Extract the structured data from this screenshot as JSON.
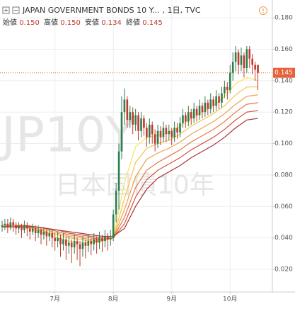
{
  "chart_data": {
    "type": "candlestick",
    "header": {
      "title": "JAPAN GOVERNMENT BONDS 10 Y...",
      "interval": ", 1日, TVC",
      "open_label": "始値",
      "open": "0.150",
      "high_label": "高値",
      "high": "0.150",
      "low_label": "安値",
      "low": "0.134",
      "close_label": "終値",
      "close": "0.145"
    },
    "watermark": [
      "JP10Y",
      "日本国債10年"
    ],
    "up_color": "#2e7d4f",
    "down_color": "#c0392b",
    "ohlc": [
      [
        0.047,
        0.051,
        0.044,
        0.048
      ],
      [
        0.048,
        0.052,
        0.045,
        0.049
      ],
      [
        0.049,
        0.052,
        0.043,
        0.047
      ],
      [
        0.047,
        0.053,
        0.045,
        0.05
      ],
      [
        0.05,
        0.052,
        0.044,
        0.048
      ],
      [
        0.048,
        0.05,
        0.042,
        0.046
      ],
      [
        0.046,
        0.05,
        0.043,
        0.047
      ],
      [
        0.047,
        0.049,
        0.04,
        0.045
      ],
      [
        0.045,
        0.051,
        0.043,
        0.048
      ],
      [
        0.048,
        0.05,
        0.041,
        0.046
      ],
      [
        0.046,
        0.048,
        0.039,
        0.044
      ],
      [
        0.044,
        0.049,
        0.042,
        0.046
      ],
      [
        0.046,
        0.048,
        0.038,
        0.043
      ],
      [
        0.043,
        0.048,
        0.04,
        0.045
      ],
      [
        0.045,
        0.047,
        0.036,
        0.042
      ],
      [
        0.042,
        0.047,
        0.039,
        0.044
      ],
      [
        0.044,
        0.046,
        0.035,
        0.041
      ],
      [
        0.041,
        0.046,
        0.038,
        0.043
      ],
      [
        0.043,
        0.045,
        0.034,
        0.04
      ],
      [
        0.04,
        0.043,
        0.032,
        0.038
      ],
      [
        0.038,
        0.044,
        0.034,
        0.04
      ],
      [
        0.04,
        0.042,
        0.028,
        0.036
      ],
      [
        0.036,
        0.043,
        0.032,
        0.039
      ],
      [
        0.039,
        0.041,
        0.026,
        0.035
      ],
      [
        0.035,
        0.041,
        0.03,
        0.037
      ],
      [
        0.037,
        0.039,
        0.024,
        0.034
      ],
      [
        0.034,
        0.042,
        0.03,
        0.038
      ],
      [
        0.038,
        0.04,
        0.026,
        0.036
      ],
      [
        0.036,
        0.038,
        0.022,
        0.033
      ],
      [
        0.033,
        0.041,
        0.028,
        0.037
      ],
      [
        0.037,
        0.039,
        0.027,
        0.035
      ],
      [
        0.035,
        0.042,
        0.031,
        0.038
      ],
      [
        0.038,
        0.04,
        0.029,
        0.036
      ],
      [
        0.036,
        0.043,
        0.032,
        0.039
      ],
      [
        0.039,
        0.041,
        0.03,
        0.037
      ],
      [
        0.037,
        0.044,
        0.033,
        0.04
      ],
      [
        0.04,
        0.042,
        0.031,
        0.038
      ],
      [
        0.038,
        0.045,
        0.034,
        0.041
      ],
      [
        0.041,
        0.043,
        0.032,
        0.039
      ],
      [
        0.039,
        0.045,
        0.035,
        0.04
      ],
      [
        0.04,
        0.058,
        0.038,
        0.055
      ],
      [
        0.055,
        0.075,
        0.05,
        0.07
      ],
      [
        0.07,
        0.1,
        0.058,
        0.095
      ],
      [
        0.095,
        0.13,
        0.09,
        0.12
      ],
      [
        0.12,
        0.135,
        0.112,
        0.128
      ],
      [
        0.128,
        0.13,
        0.11,
        0.115
      ],
      [
        0.115,
        0.124,
        0.11,
        0.12
      ],
      [
        0.12,
        0.123,
        0.106,
        0.112
      ],
      [
        0.112,
        0.122,
        0.108,
        0.118
      ],
      [
        0.118,
        0.12,
        0.102,
        0.108
      ],
      [
        0.108,
        0.12,
        0.104,
        0.116
      ],
      [
        0.116,
        0.118,
        0.105,
        0.11
      ],
      [
        0.11,
        0.113,
        0.098,
        0.104
      ],
      [
        0.104,
        0.116,
        0.1,
        0.112
      ],
      [
        0.112,
        0.114,
        0.1,
        0.106
      ],
      [
        0.106,
        0.109,
        0.095,
        0.1
      ],
      [
        0.1,
        0.112,
        0.097,
        0.108
      ],
      [
        0.108,
        0.111,
        0.099,
        0.104
      ],
      [
        0.104,
        0.114,
        0.101,
        0.11
      ],
      [
        0.11,
        0.112,
        0.101,
        0.106
      ],
      [
        0.106,
        0.112,
        0.102,
        0.108
      ],
      [
        0.108,
        0.11,
        0.099,
        0.104
      ],
      [
        0.104,
        0.114,
        0.101,
        0.11
      ],
      [
        0.11,
        0.113,
        0.103,
        0.107
      ],
      [
        0.107,
        0.117,
        0.104,
        0.113
      ],
      [
        0.113,
        0.122,
        0.11,
        0.118
      ],
      [
        0.118,
        0.12,
        0.11,
        0.114
      ],
      [
        0.114,
        0.124,
        0.111,
        0.12
      ],
      [
        0.12,
        0.122,
        0.112,
        0.116
      ],
      [
        0.116,
        0.126,
        0.113,
        0.122
      ],
      [
        0.122,
        0.124,
        0.114,
        0.118
      ],
      [
        0.118,
        0.128,
        0.115,
        0.124
      ],
      [
        0.124,
        0.126,
        0.116,
        0.12
      ],
      [
        0.12,
        0.13,
        0.117,
        0.126
      ],
      [
        0.126,
        0.128,
        0.118,
        0.122
      ],
      [
        0.122,
        0.132,
        0.119,
        0.128
      ],
      [
        0.128,
        0.13,
        0.12,
        0.124
      ],
      [
        0.124,
        0.134,
        0.121,
        0.13
      ],
      [
        0.13,
        0.132,
        0.122,
        0.126
      ],
      [
        0.126,
        0.136,
        0.123,
        0.132
      ],
      [
        0.132,
        0.14,
        0.129,
        0.136
      ],
      [
        0.136,
        0.139,
        0.128,
        0.134
      ],
      [
        0.134,
        0.15,
        0.132,
        0.145
      ],
      [
        0.145,
        0.158,
        0.14,
        0.152
      ],
      [
        0.152,
        0.162,
        0.146,
        0.158
      ],
      [
        0.158,
        0.16,
        0.144,
        0.15
      ],
      [
        0.15,
        0.161,
        0.146,
        0.156
      ],
      [
        0.156,
        0.158,
        0.142,
        0.148
      ],
      [
        0.148,
        0.162,
        0.145,
        0.16
      ],
      [
        0.16,
        0.162,
        0.148,
        0.154
      ],
      [
        0.154,
        0.157,
        0.144,
        0.15
      ],
      [
        0.15,
        0.152,
        0.14,
        0.147
      ],
      [
        0.15,
        0.15,
        0.134,
        0.145
      ]
    ],
    "ribbon_x": [
      0,
      4,
      8,
      12,
      16,
      20,
      24,
      28,
      32,
      36,
      40,
      44,
      48,
      52,
      56,
      60,
      64,
      68,
      72,
      76,
      80,
      84,
      88,
      92
    ],
    "ribbon": [
      {
        "color": "#f7e35a",
        "values": [
          0.048,
          0.048,
          0.047,
          0.045,
          0.043,
          0.04,
          0.038,
          0.037,
          0.037,
          0.038,
          0.04,
          0.075,
          0.098,
          0.104,
          0.105,
          0.107,
          0.111,
          0.116,
          0.12,
          0.124,
          0.13,
          0.138,
          0.142,
          0.14
        ]
      },
      {
        "color": "#f5c24f",
        "values": [
          0.048,
          0.048,
          0.047,
          0.046,
          0.044,
          0.042,
          0.04,
          0.039,
          0.038,
          0.038,
          0.04,
          0.065,
          0.088,
          0.097,
          0.1,
          0.102,
          0.106,
          0.111,
          0.115,
          0.119,
          0.124,
          0.131,
          0.136,
          0.136
        ]
      },
      {
        "color": "#f0a04a",
        "values": [
          0.048,
          0.048,
          0.048,
          0.046,
          0.045,
          0.043,
          0.041,
          0.04,
          0.039,
          0.039,
          0.04,
          0.058,
          0.079,
          0.09,
          0.094,
          0.097,
          0.101,
          0.106,
          0.11,
          0.114,
          0.119,
          0.125,
          0.13,
          0.131
        ]
      },
      {
        "color": "#e57a45",
        "values": [
          0.047,
          0.048,
          0.048,
          0.047,
          0.046,
          0.044,
          0.042,
          0.041,
          0.04,
          0.039,
          0.04,
          0.053,
          0.072,
          0.083,
          0.088,
          0.092,
          0.096,
          0.101,
          0.105,
          0.109,
          0.114,
          0.12,
          0.125,
          0.126
        ]
      },
      {
        "color": "#d2553f",
        "values": [
          0.047,
          0.047,
          0.048,
          0.047,
          0.046,
          0.045,
          0.043,
          0.042,
          0.041,
          0.04,
          0.04,
          0.049,
          0.066,
          0.077,
          0.083,
          0.087,
          0.091,
          0.096,
          0.1,
          0.104,
          0.109,
          0.115,
          0.12,
          0.121
        ]
      },
      {
        "color": "#a8323a",
        "values": [
          0.047,
          0.047,
          0.047,
          0.047,
          0.046,
          0.045,
          0.044,
          0.043,
          0.042,
          0.041,
          0.041,
          0.046,
          0.06,
          0.071,
          0.078,
          0.082,
          0.086,
          0.091,
          0.095,
          0.099,
          0.104,
          0.11,
          0.115,
          0.116
        ]
      }
    ],
    "last_price": {
      "value": 0.145,
      "label": "0.145"
    },
    "last_price_color": "#e8603c",
    "xlim": [
      -0.76,
      97.2
    ],
    "ylim": [
      0.0056,
      0.1913
    ],
    "xticks": [
      {
        "value": 19,
        "label": "7月"
      },
      {
        "value": 40,
        "label": "8月"
      },
      {
        "value": 61,
        "label": "9月"
      },
      {
        "value": 82,
        "label": "10月"
      }
    ],
    "yticks": [
      {
        "value": 0.02,
        "label": "0.020"
      },
      {
        "value": 0.04,
        "label": "0.040"
      },
      {
        "value": 0.06,
        "label": "0.060"
      },
      {
        "value": 0.08,
        "label": "0.080"
      },
      {
        "value": 0.1,
        "label": "0.100"
      },
      {
        "value": 0.12,
        "label": "0.120"
      },
      {
        "value": 0.14,
        "label": "0.140"
      },
      {
        "value": 0.16,
        "label": "0.160"
      },
      {
        "value": 0.18,
        "label": "0.180"
      }
    ],
    "grid": true
  }
}
